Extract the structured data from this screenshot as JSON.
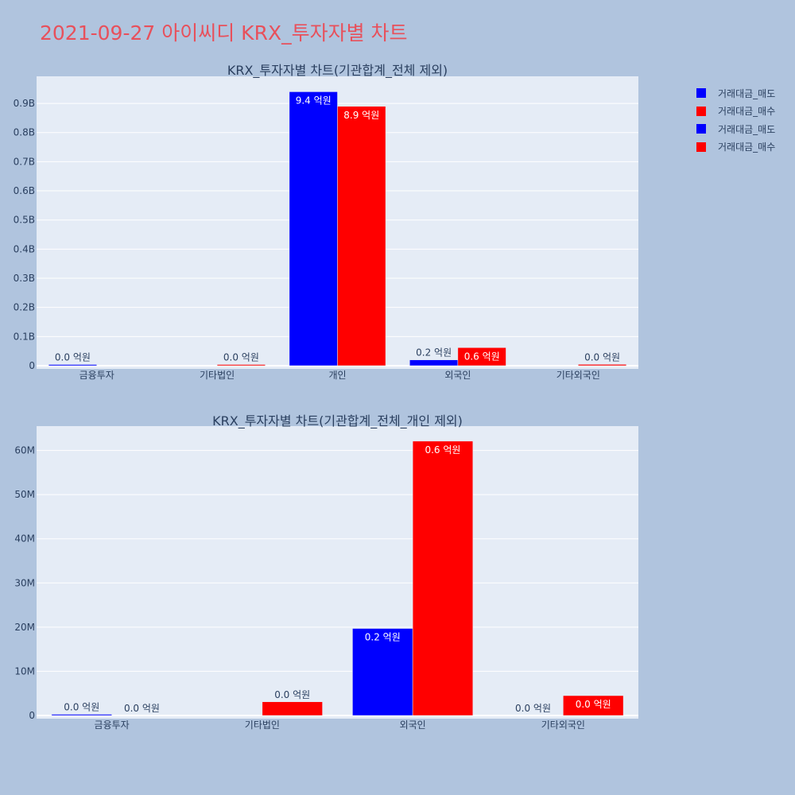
{
  "page_title": "2021-09-27 아이씨디 KRX_투자자별 차트",
  "colors": {
    "sell": "#0000ff",
    "buy": "#ff0000",
    "plot_bg": "#e5ecf6",
    "page_bg": "#b0c4de",
    "title": "#e8505b"
  },
  "legend": [
    {
      "label": "거래대금_매도",
      "color": "#0000ff"
    },
    {
      "label": "거래대금_매수",
      "color": "#ff0000"
    },
    {
      "label": "거래대금_매도",
      "color": "#0000ff"
    },
    {
      "label": "거래대금_매수",
      "color": "#ff0000"
    }
  ],
  "chart_data": [
    {
      "type": "bar",
      "title": "KRX_투자자별 차트(기관합계_전체 제외)",
      "categories": [
        "금융투자",
        "기타법인",
        "개인",
        "외국인",
        "기타외국인"
      ],
      "series": [
        {
          "name": "거래대금_매도",
          "values": [
            100000,
            0,
            940000000,
            20000000,
            0
          ],
          "labels": [
            "0.0 억원",
            "",
            "9.4 억원",
            "0.2 억원",
            ""
          ]
        },
        {
          "name": "거래대금_매수",
          "values": [
            0,
            3000000,
            890000000,
            62000000,
            4500000
          ],
          "labels": [
            "",
            "0.0 억원",
            "8.9 억원",
            "0.6 억원",
            "0.0 억원"
          ]
        }
      ],
      "yticks": [
        "0",
        "0.1B",
        "0.2B",
        "0.3B",
        "0.4B",
        "0.5B",
        "0.6B",
        "0.7B",
        "0.8B",
        "0.9B"
      ],
      "ytick_values": [
        0,
        100000000,
        200000000,
        300000000,
        400000000,
        500000000,
        600000000,
        700000000,
        800000000,
        900000000
      ],
      "ylim": [
        0,
        993000000
      ],
      "grid": true
    },
    {
      "type": "bar",
      "title": "KRX_투자자별 차트(기관합계_전체_개인 제외)",
      "categories": [
        "금융투자",
        "기타법인",
        "외국인",
        "기타외국인"
      ],
      "series": [
        {
          "name": "거래대금_매도",
          "values": [
            100000,
            0,
            19700000,
            0
          ],
          "labels": [
            "0.0 억원",
            "",
            "0.2 억원",
            "0.0 억원"
          ]
        },
        {
          "name": "거래대금_매수",
          "values": [
            0,
            3100000,
            62100000,
            4500000
          ],
          "labels": [
            "0.0 억원",
            "0.0 억원",
            "0.6 억원",
            "0.0 억원"
          ]
        }
      ],
      "yticks": [
        "0",
        "10M",
        "20M",
        "30M",
        "40M",
        "50M",
        "60M"
      ],
      "ytick_values": [
        0,
        10000000,
        20000000,
        30000000,
        40000000,
        50000000,
        60000000
      ],
      "ylim": [
        0,
        65500000
      ],
      "grid": true
    }
  ]
}
